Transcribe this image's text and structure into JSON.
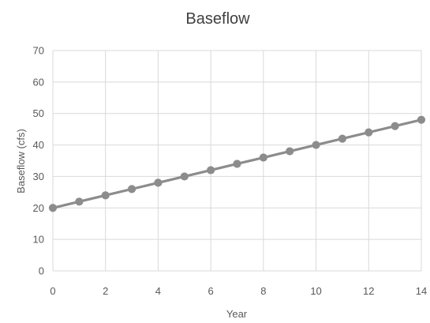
{
  "chart_data": {
    "type": "line",
    "title": "Baseflow",
    "xlabel": "Year",
    "ylabel": "Baseflow (cfs)",
    "xlim": [
      0,
      14
    ],
    "ylim": [
      0,
      70
    ],
    "x_ticks": [
      0,
      2,
      4,
      6,
      8,
      10,
      12,
      14
    ],
    "y_ticks": [
      0,
      10,
      20,
      30,
      40,
      50,
      60,
      70
    ],
    "grid": true,
    "legend": "none",
    "series": [
      {
        "color": "#8c8c8c",
        "x": [
          0,
          1,
          2,
          3,
          4,
          5,
          6,
          7,
          8,
          9,
          10,
          11,
          12,
          13,
          14
        ],
        "y": [
          20,
          22,
          24,
          26,
          28,
          30,
          32,
          34,
          36,
          38,
          40,
          42,
          44,
          46,
          48
        ]
      }
    ]
  }
}
